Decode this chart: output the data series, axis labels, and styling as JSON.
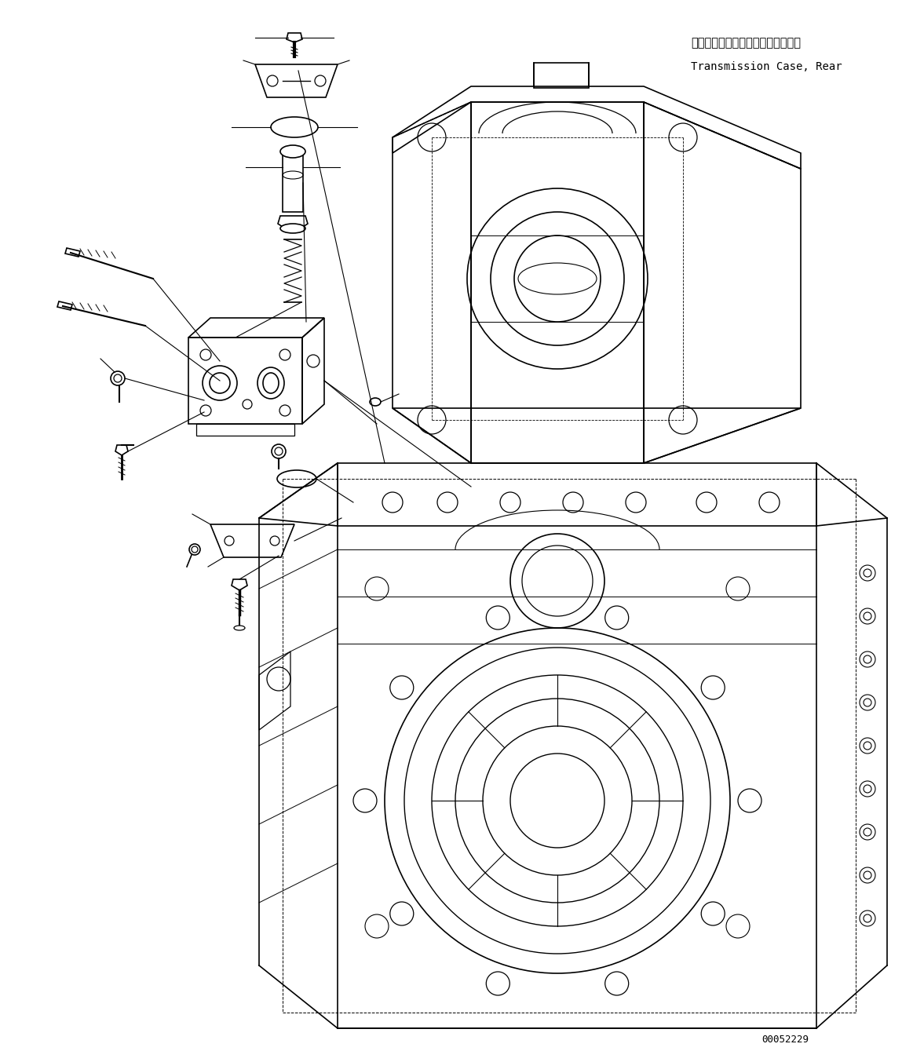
{
  "title_jp": "トランスミッションケース、リヤー",
  "title_en": "Transmission Case, Rear",
  "part_number": "00052229",
  "bg_color": "#ffffff",
  "line_color": "#000000",
  "title_fontsize": 10.5,
  "part_number_fontsize": 9,
  "fig_width": 11.63,
  "fig_height": 13.53
}
